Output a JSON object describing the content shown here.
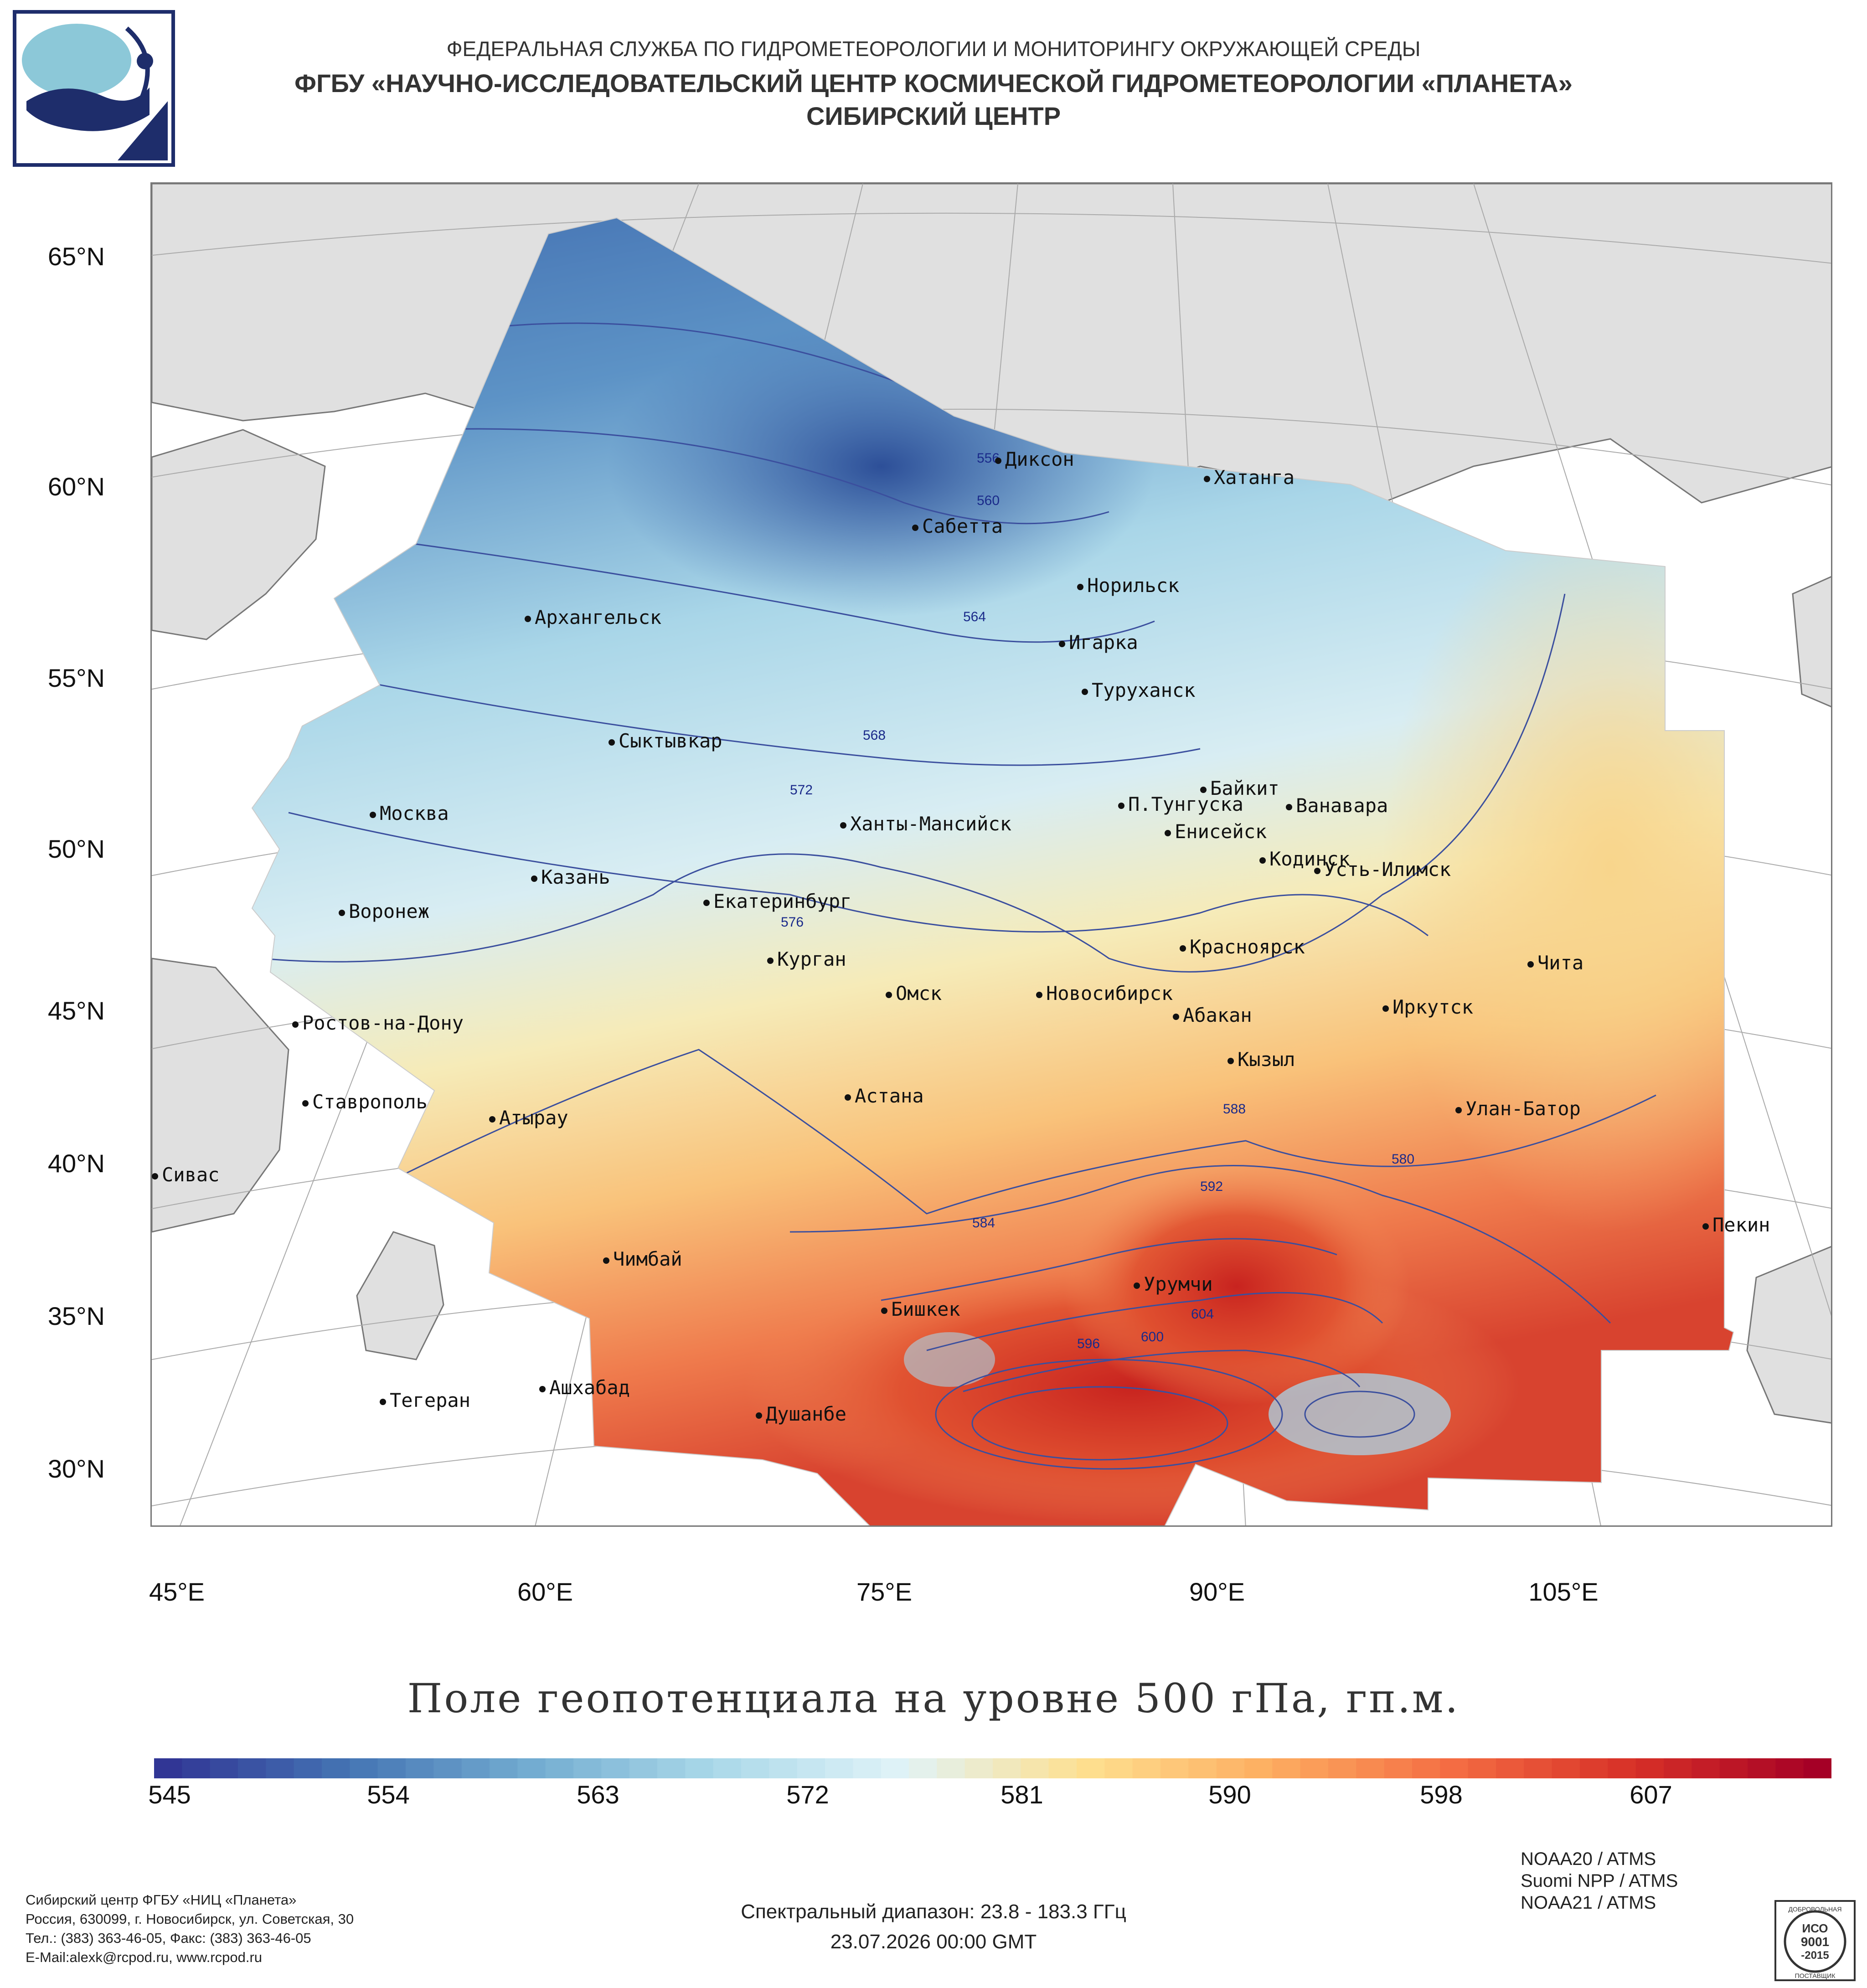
{
  "header": {
    "agency": "ФЕДЕРАЛЬНАЯ СЛУЖБА ПО ГИДРОМЕТЕОРОЛОГИИ И МОНИТОРИНГУ ОКРУЖАЮЩЕЙ СРЕДЫ",
    "center": "ФГБУ «НАУЧНО-ИССЛЕДОВАТЕЛЬСКИЙ ЦЕНТР КОСМИЧЕСКОЙ ГИДРОМЕТЕОРОЛОГИИ «ПЛАНЕТА»",
    "branch": "СИБИРСКИЙ ЦЕНТР"
  },
  "map": {
    "lat_labels": [
      "65°N",
      "60°N",
      "55°N",
      "50°N",
      "45°N",
      "40°N",
      "35°N",
      "30°N"
    ],
    "lon_labels": [
      "45°E",
      "60°E",
      "75°E",
      "90°E",
      "105°E"
    ],
    "cities": [
      {
        "name": "Диксон"
      },
      {
        "name": "Хатанга"
      },
      {
        "name": "Сабетта"
      },
      {
        "name": "Норильск"
      },
      {
        "name": "Архангельск"
      },
      {
        "name": "Игарка"
      },
      {
        "name": "Туруханск"
      },
      {
        "name": "Сыктывкар"
      },
      {
        "name": "Байкит"
      },
      {
        "name": "Москва"
      },
      {
        "name": "П.Тунгуска"
      },
      {
        "name": "Ванавара"
      },
      {
        "name": "Ханты-Мансийск"
      },
      {
        "name": "Енисейск"
      },
      {
        "name": "Казань"
      },
      {
        "name": "Кодинск"
      },
      {
        "name": "Усть-Илимск"
      },
      {
        "name": "Екатеринбург"
      },
      {
        "name": "Воронеж"
      },
      {
        "name": "Красноярск"
      },
      {
        "name": "Курган"
      },
      {
        "name": "Чита"
      },
      {
        "name": "Омск"
      },
      {
        "name": "Новосибирск"
      },
      {
        "name": "Ростов-на-Дону"
      },
      {
        "name": "Абакан"
      },
      {
        "name": "Иркутск"
      },
      {
        "name": "Кызыл"
      },
      {
        "name": "Астана"
      },
      {
        "name": "Ставрополь"
      },
      {
        "name": "Улан-Батор"
      },
      {
        "name": "Атырау"
      },
      {
        "name": "Сивас"
      },
      {
        "name": "Пекин"
      },
      {
        "name": "Чимбай"
      },
      {
        "name": "Урумчи"
      },
      {
        "name": "Бишкек"
      },
      {
        "name": "Ашхабад"
      },
      {
        "name": "Тегеран"
      },
      {
        "name": "Душанбе"
      }
    ],
    "isoline_labels": [
      "556",
      "560",
      "564",
      "568",
      "572",
      "576",
      "580",
      "584",
      "588",
      "592",
      "596",
      "600",
      "604"
    ]
  },
  "legend": {
    "title": "Поле геопотенциала на уровне 500 гПа, гп.м.",
    "ticks": [
      "545",
      "554",
      "563",
      "572",
      "581",
      "590",
      "598",
      "607"
    ],
    "colors": [
      "#313695",
      "#4575b4",
      "#74add1",
      "#abd9e9",
      "#e0f3f8",
      "#fee090",
      "#fdae61",
      "#f46d43",
      "#d73027",
      "#a50026"
    ]
  },
  "footer": {
    "org_name": "Сибирский центр ФГБУ «НИЦ «Планета»",
    "address": "Россия, 630099, г. Новосибирск, ул. Советская, 30",
    "phones": "Тел.: (383) 363-46-05, Факс: (383) 363-46-05",
    "email": "E-Mail:alexk@rcpod.ru, www.rcpod.ru",
    "spectral": "Спектральный диапазон: 23.8 - 183.3 ГГц",
    "datetime": "23.07.2026 00:00 GMT",
    "sensors": [
      "NOAA20 / ATMS",
      "Suomi NPP / ATMS",
      "NOAA21 / ATMS"
    ],
    "iso_seal": [
      "ДОБРОВОЛЬНАЯ",
      "ИСО",
      "9001",
      "-2015",
      "ПОСТАВЩИК"
    ]
  }
}
